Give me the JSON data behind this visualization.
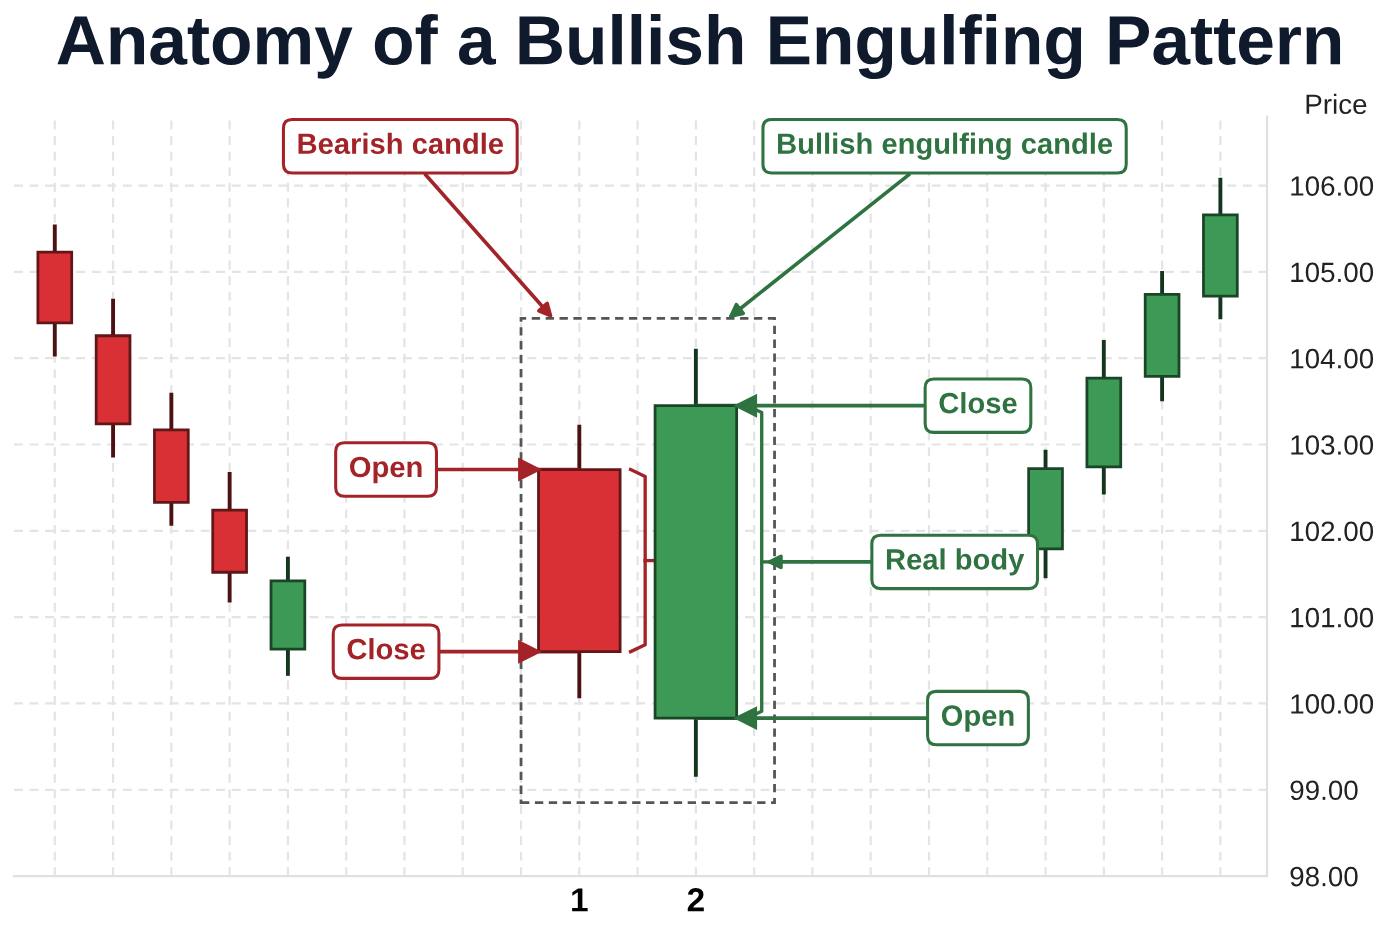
{
  "chart_data": {
    "type": "candlestick",
    "title": "Anatomy of a Bullish Engulfing Pattern",
    "ylabel": "Price",
    "categories": [
      null,
      null,
      null,
      null,
      null,
      null,
      null,
      null,
      null,
      "1",
      null,
      "2",
      null,
      null,
      null,
      null,
      null,
      null,
      null,
      null,
      null
    ],
    "ohlc": [
      [
        105.23,
        105.55,
        104.02,
        104.41
      ],
      [
        104.26,
        104.69,
        102.85,
        103.24
      ],
      [
        103.17,
        103.6,
        102.06,
        102.33
      ],
      [
        102.24,
        102.68,
        101.17,
        101.52
      ],
      [
        100.63,
        101.7,
        100.32,
        101.42
      ],
      null,
      null,
      null,
      null,
      [
        102.71,
        103.23,
        100.06,
        100.6
      ],
      null,
      [
        99.83,
        104.11,
        99.15,
        103.45
      ],
      null,
      null,
      null,
      null,
      null,
      [
        101.79,
        102.94,
        101.45,
        102.72
      ],
      [
        102.74,
        104.21,
        102.42,
        103.77
      ],
      [
        103.79,
        105.01,
        103.5,
        104.74
      ],
      [
        104.72,
        106.09,
        104.45,
        105.66
      ]
    ],
    "colors": [
      "#d93035",
      "#d93035",
      "#d93035",
      "#d93035",
      "#3d9a56",
      null,
      null,
      null,
      null,
      "#d93035",
      null,
      "#3d9a56",
      null,
      null,
      null,
      null,
      null,
      "#3d9a56",
      "#3d9a56",
      "#3d9a56",
      "#3d9a56"
    ],
    "ylim": [
      98,
      106.8
    ],
    "yticks": [
      {
        "value": 98,
        "label": "98.00"
      },
      {
        "value": 99,
        "label": "99.00"
      },
      {
        "value": 100,
        "label": "100.00"
      },
      {
        "value": 101,
        "label": "101.00"
      },
      {
        "value": 102,
        "label": "102.00"
      },
      {
        "value": 103,
        "label": "103.00"
      },
      {
        "value": 104,
        "label": "104.00"
      },
      {
        "value": 105,
        "label": "105.00"
      },
      {
        "value": 106,
        "label": "106.00"
      }
    ],
    "grid": true,
    "annotations": [
      "Bearish candle",
      "Bullish engulfing candle",
      {
        "text": "Open",
        "x": "1",
        "y": 102.71
      },
      {
        "text": "Close",
        "x": "1",
        "y": 100.6
      },
      {
        "text": "Close",
        "x": "2",
        "y": 103.45
      },
      "Real body",
      {
        "text": "Open",
        "x": "2",
        "y": 99.83
      }
    ]
  }
}
